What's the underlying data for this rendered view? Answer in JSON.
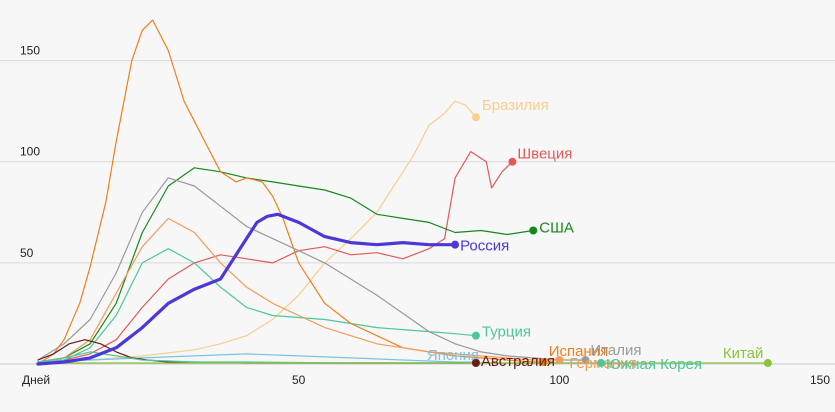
{
  "chart_data": {
    "type": "line",
    "title": "",
    "xlabel": "Дней",
    "ylabel": "",
    "xlim": [
      0,
      150
    ],
    "ylim": [
      0,
      175
    ],
    "x_ticks": [
      50,
      100,
      150
    ],
    "x_tick_labels": [
      "50",
      "100",
      "150"
    ],
    "y_ticks": [
      50,
      100,
      150
    ],
    "y_tick_labels": [
      "50",
      "100",
      "150"
    ],
    "grid": true,
    "legend": "inline end labels",
    "series": [
      {
        "name": "Бразилия",
        "color": "#f7cf8e",
        "width": 1.2,
        "x": [
          0,
          10,
          20,
          30,
          35,
          40,
          45,
          50,
          55,
          60,
          65,
          70,
          72,
          75,
          78,
          80,
          82,
          84
        ],
        "y": [
          1,
          2,
          4,
          7,
          10,
          14,
          22,
          34,
          50,
          62,
          75,
          95,
          103,
          118,
          124,
          130,
          128,
          122
        ]
      },
      {
        "name": "Швеция",
        "color": "#e15a5a",
        "width": 1.2,
        "x": [
          0,
          5,
          10,
          15,
          20,
          25,
          30,
          35,
          40,
          45,
          50,
          55,
          60,
          65,
          70,
          75,
          78,
          80,
          83,
          86,
          87,
          89,
          91
        ],
        "y": [
          1,
          2,
          5,
          12,
          28,
          42,
          50,
          54,
          52,
          50,
          56,
          58,
          54,
          55,
          52,
          57,
          62,
          92,
          105,
          100,
          87,
          95,
          100
        ]
      },
      {
        "name": "США",
        "color": "#16881e",
        "width": 1.2,
        "x": [
          0,
          5,
          10,
          15,
          20,
          25,
          30,
          35,
          40,
          45,
          50,
          55,
          60,
          65,
          70,
          75,
          80,
          85,
          90,
          95
        ],
        "y": [
          1,
          3,
          10,
          30,
          65,
          88,
          97,
          95,
          92,
          90,
          88,
          86,
          82,
          74,
          72,
          70,
          65,
          66,
          64,
          66
        ]
      },
      {
        "name": "Россия",
        "color": "#4b38d6",
        "width": 3.2,
        "x": [
          0,
          5,
          10,
          15,
          20,
          25,
          30,
          35,
          40,
          42,
          44,
          46,
          48,
          50,
          55,
          60,
          65,
          70,
          75,
          80
        ],
        "y": [
          0,
          1,
          3,
          8,
          18,
          30,
          37,
          42,
          62,
          70,
          73,
          74,
          72,
          70,
          63,
          60,
          59,
          60,
          59,
          59
        ]
      },
      {
        "name": "Турция",
        "color": "#4cc79a",
        "width": 1.2,
        "x": [
          0,
          5,
          10,
          15,
          20,
          25,
          30,
          35,
          40,
          45,
          50,
          55,
          60,
          65,
          70,
          75,
          80,
          84
        ],
        "y": [
          0,
          2,
          8,
          24,
          50,
          57,
          50,
          38,
          28,
          24,
          23,
          22,
          20,
          18,
          17,
          16,
          15,
          14
        ]
      },
      {
        "name": "Испания",
        "color": "#f07f1d",
        "width": 1.2,
        "x": [
          0,
          3,
          5,
          8,
          10,
          13,
          15,
          18,
          20,
          22,
          25,
          28,
          30,
          33,
          35,
          38,
          40,
          43,
          45,
          47,
          50,
          55,
          60,
          65,
          70,
          75,
          80,
          85,
          90,
          95,
          97
        ],
        "y": [
          0,
          5,
          12,
          30,
          48,
          80,
          110,
          150,
          165,
          170,
          155,
          130,
          120,
          105,
          95,
          90,
          92,
          90,
          83,
          72,
          50,
          30,
          20,
          14,
          8,
          6,
          4,
          3,
          2,
          1,
          1
        ]
      },
      {
        "name": "Италия",
        "color": "#9a9a9a",
        "width": 1.2,
        "x": [
          0,
          5,
          10,
          15,
          20,
          25,
          30,
          35,
          40,
          45,
          50,
          55,
          60,
          65,
          70,
          75,
          80,
          85,
          90,
          95,
          100,
          105
        ],
        "y": [
          2,
          10,
          22,
          45,
          75,
          92,
          88,
          78,
          68,
          62,
          56,
          50,
          42,
          34,
          25,
          16,
          10,
          6,
          4,
          3,
          2,
          2
        ]
      },
      {
        "name": "Германия",
        "color": "#f39c5a",
        "width": 1.2,
        "x": [
          0,
          5,
          10,
          15,
          20,
          25,
          30,
          35,
          40,
          45,
          50,
          55,
          60,
          65,
          70,
          75,
          80,
          85,
          90,
          95,
          100
        ],
        "y": [
          0,
          3,
          12,
          35,
          58,
          72,
          65,
          50,
          38,
          30,
          24,
          18,
          14,
          10,
          8,
          6,
          5,
          4,
          3,
          2,
          2
        ]
      },
      {
        "name": "Япония",
        "color": "#7ac3e6",
        "width": 1.2,
        "x": [
          0,
          10,
          20,
          30,
          40,
          50,
          60,
          70,
          80,
          84
        ],
        "y": [
          1,
          2,
          3,
          4,
          5,
          4,
          3,
          2,
          1,
          1
        ]
      },
      {
        "name": "Австралия",
        "color": "#6a1d12",
        "width": 1.2,
        "x": [
          0,
          3,
          6,
          9,
          12,
          15,
          18,
          21,
          25,
          30,
          40,
          50,
          60,
          70,
          80,
          84
        ],
        "y": [
          2,
          5,
          10,
          12,
          10,
          6,
          3,
          2,
          1,
          1,
          0.5,
          0.5,
          0.5,
          0.5,
          0.5,
          0.5
        ]
      },
      {
        "name": "Южная Корея",
        "color": "#4cc79a",
        "width": 1.2,
        "x": [
          0,
          5,
          10,
          15,
          20,
          30,
          40,
          60,
          80,
          100,
          108
        ],
        "y": [
          1,
          3,
          6,
          4,
          2,
          1,
          1,
          0.5,
          0.5,
          0.5,
          0.5
        ]
      },
      {
        "name": "Китай",
        "color": "#8ac43f",
        "width": 1.2,
        "x": [
          0,
          20,
          40,
          60,
          80,
          100,
          120,
          140
        ],
        "y": [
          0.5,
          0.5,
          0.5,
          0.5,
          0.5,
          0.5,
          0.5,
          0.5
        ]
      }
    ]
  },
  "label_offsets": {
    "Бразилия": [
      6,
      -12
    ],
    "Швеция": [
      5,
      -8
    ],
    "США": [
      6,
      -3
    ],
    "Россия": [
      5,
      1
    ],
    "Турция": [
      6,
      -4
    ],
    "Испания": [
      5,
      -11
    ],
    "Италия": [
      5,
      -10
    ],
    "Германия": [
      10,
      3
    ],
    "Япония": [
      -49,
      -7
    ],
    "Австралия": [
      5,
      -2
    ],
    "Южная Корея": [
      5,
      1
    ],
    "Китай": [
      -45,
      -10
    ]
  }
}
